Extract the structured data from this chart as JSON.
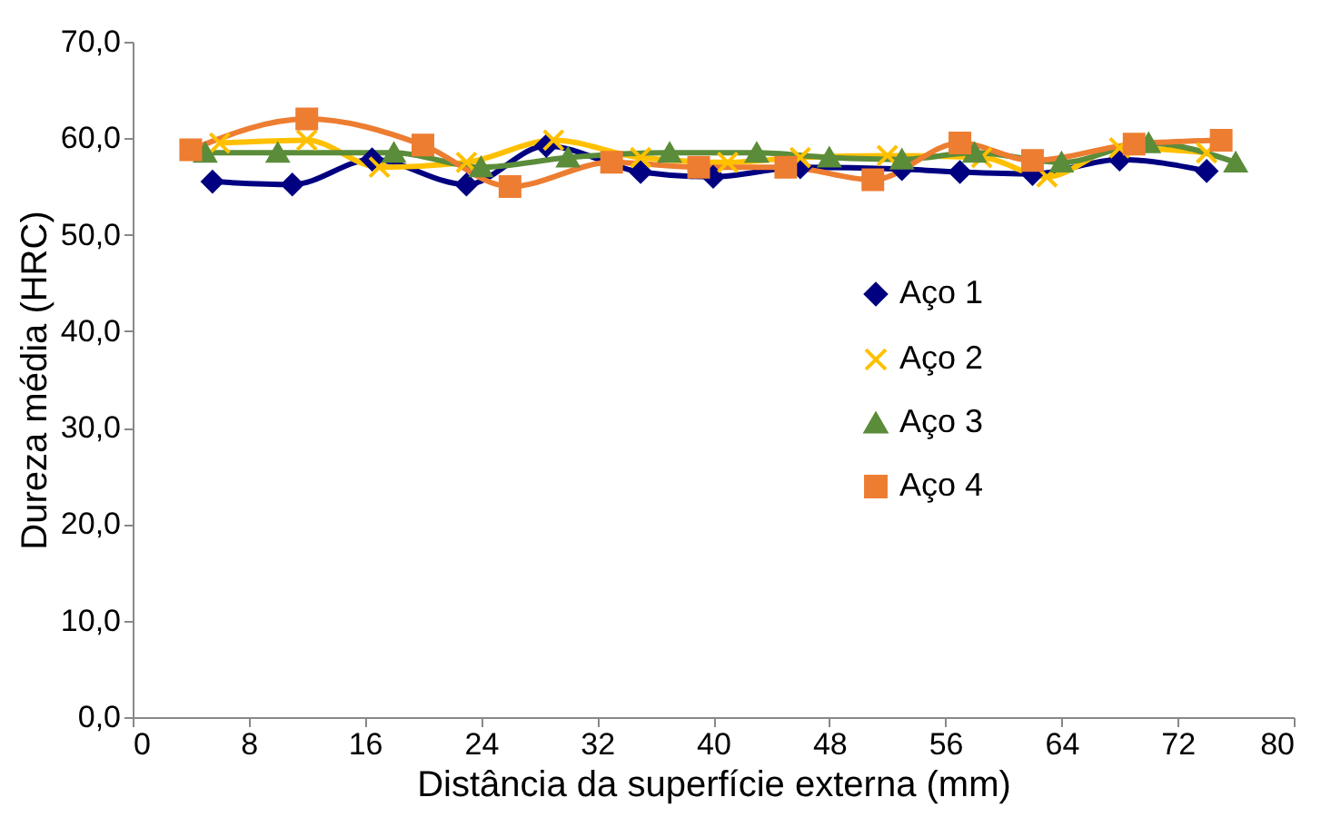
{
  "chart_data": {
    "type": "line",
    "xlabel": "Distância da superfície externa (mm)",
    "ylabel": "Dureza média (HRC)",
    "xlim": [
      0,
      80
    ],
    "xticks": [
      0,
      8,
      16,
      24,
      32,
      40,
      48,
      56,
      64,
      72,
      80
    ],
    "ylim": [
      0,
      70
    ],
    "yticks": [
      {
        "value": 0,
        "label": "0,0"
      },
      {
        "value": 10,
        "label": "10,0"
      },
      {
        "value": 20,
        "label": "20,0"
      },
      {
        "value": 30,
        "label": "30,0"
      },
      {
        "value": 40,
        "label": "40,0"
      },
      {
        "value": 50,
        "label": "50,0"
      },
      {
        "value": 60,
        "label": "60,0"
      },
      {
        "value": 70,
        "label": "70,0"
      }
    ],
    "grid": false,
    "legend": "right",
    "series": [
      {
        "name": "Aço 1",
        "color": "#000080",
        "marker": "diamond",
        "x": [
          5.5,
          11,
          16.5,
          23,
          28.5,
          35,
          40,
          46,
          53,
          57,
          62,
          68,
          74
        ],
        "values": [
          55.5,
          55.2,
          57.8,
          55.2,
          59.2,
          56.5,
          56,
          57,
          56.8,
          56.5,
          56.3,
          57.8,
          56.6
        ]
      },
      {
        "name": "Aço 2",
        "color": "#ffc000",
        "marker": "cross",
        "x": [
          6,
          12,
          17,
          23,
          29,
          35,
          41,
          46,
          52,
          58.5,
          63,
          68,
          74
        ],
        "values": [
          59.5,
          59.8,
          57,
          57.5,
          59.8,
          58,
          57.5,
          58,
          58.2,
          58,
          56,
          59,
          58.5
        ]
      },
      {
        "name": "Aço 3",
        "color": "#5b8c3a",
        "marker": "triangle",
        "x": [
          5,
          10,
          18,
          24,
          30,
          37,
          43,
          48,
          53,
          58,
          64,
          70,
          76
        ],
        "values": [
          58.5,
          58.5,
          58.5,
          57,
          58,
          58.5,
          58.5,
          58,
          57.8,
          58.5,
          57.5,
          59.5,
          57.5
        ]
      },
      {
        "name": "Aço 4",
        "color": "#ed7d31",
        "marker": "square",
        "x": [
          4,
          12,
          20,
          26,
          33,
          39,
          45,
          51,
          57,
          62,
          69,
          75
        ],
        "values": [
          58.8,
          62,
          59.3,
          55,
          57.5,
          57,
          57,
          55.7,
          59.5,
          57.7,
          59.4,
          59.8
        ]
      }
    ]
  }
}
